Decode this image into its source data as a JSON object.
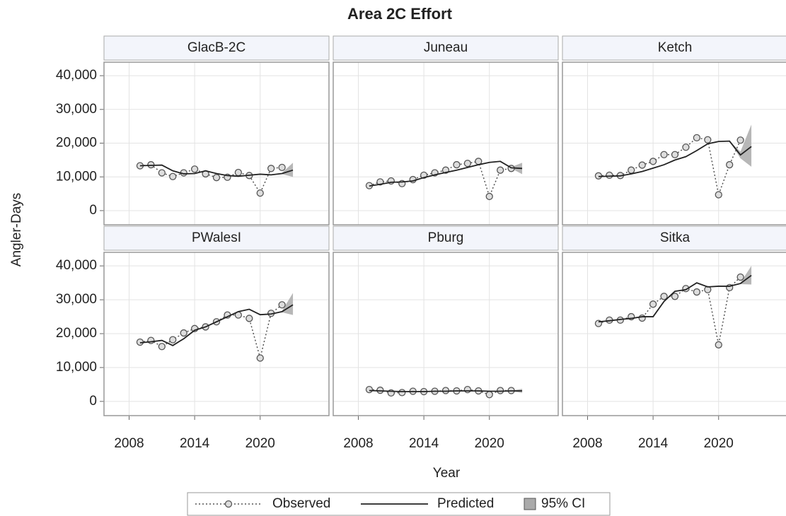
{
  "figure": {
    "title": "Area 2C Effort",
    "xlabel": "Year",
    "ylabel": "Angler-Days"
  },
  "chart_data": [
    {
      "type": "line",
      "title": "GlacB-2C",
      "x": [
        2009,
        2010,
        2011,
        2012,
        2013,
        2014,
        2015,
        2016,
        2017,
        2018,
        2019,
        2020,
        2021,
        2022,
        2023
      ],
      "series": [
        {
          "name": "Observed",
          "color": "#555555",
          "values": [
            13300,
            13600,
            11200,
            10100,
            11200,
            12300,
            10900,
            9800,
            9900,
            11300,
            10400,
            5200,
            12500,
            12800,
            null
          ]
        },
        {
          "name": "Predicted",
          "color": "#222222",
          "values": [
            13300,
            13400,
            13500,
            11800,
            10900,
            11000,
            11800,
            11000,
            10400,
            10200,
            10500,
            10800,
            10600,
            11000,
            12000
          ]
        },
        {
          "name": "95% CI",
          "color": "#aaaaaa",
          "lower": [
            null,
            null,
            null,
            null,
            null,
            null,
            null,
            null,
            null,
            null,
            null,
            null,
            null,
            10800,
            10000
          ],
          "upper": [
            null,
            null,
            null,
            null,
            null,
            null,
            null,
            null,
            null,
            null,
            null,
            null,
            null,
            11200,
            14200
          ]
        }
      ],
      "xlim": [
        2005.7,
        2026.3
      ],
      "xticks": [
        2008,
        2014,
        2020
      ],
      "ylim": [
        -4200,
        44000
      ],
      "yticks": [
        0,
        {
          "value": 10000,
          "label": "10,000"
        },
        {
          "value": 20000,
          "label": "20,000"
        },
        {
          "value": 30000,
          "label": "30,000"
        },
        {
          "value": 40000,
          "label": "40,000"
        }
      ],
      "grid": true
    },
    {
      "type": "line",
      "title": "Juneau",
      "x": [
        2009,
        2010,
        2011,
        2012,
        2013,
        2014,
        2015,
        2016,
        2017,
        2018,
        2019,
        2020,
        2021,
        2022,
        2023
      ],
      "series": [
        {
          "name": "Observed",
          "color": "#555555",
          "values": [
            7400,
            8500,
            8800,
            8000,
            9200,
            10500,
            11200,
            12000,
            13600,
            14000,
            14600,
            4200,
            12000,
            12500,
            null
          ]
        },
        {
          "name": "Predicted",
          "color": "#222222",
          "values": [
            7300,
            7800,
            8400,
            8500,
            8800,
            9800,
            10600,
            11300,
            12000,
            12800,
            13600,
            14300,
            14600,
            12700,
            12500
          ]
        },
        {
          "name": "95% CI",
          "color": "#aaaaaa",
          "lower": [
            null,
            null,
            null,
            null,
            null,
            null,
            null,
            null,
            null,
            null,
            null,
            null,
            null,
            12500,
            10800
          ],
          "upper": [
            null,
            null,
            null,
            null,
            null,
            null,
            null,
            null,
            null,
            null,
            null,
            null,
            null,
            12900,
            14200
          ]
        }
      ],
      "xlim": [
        2005.7,
        2026.3
      ],
      "xticks": [
        2008,
        2014,
        2020
      ],
      "ylim": [
        -4200,
        44000
      ],
      "yticks": [
        0,
        {
          "value": 10000,
          "label": "10,000"
        },
        {
          "value": 20000,
          "label": "20,000"
        },
        {
          "value": 30000,
          "label": "30,000"
        },
        {
          "value": 40000,
          "label": "40,000"
        }
      ],
      "grid": true
    },
    {
      "type": "line",
      "title": "Ketch",
      "x": [
        2009,
        2010,
        2011,
        2012,
        2013,
        2014,
        2015,
        2016,
        2017,
        2018,
        2019,
        2020,
        2021,
        2022,
        2023
      ],
      "series": [
        {
          "name": "Observed",
          "color": "#555555",
          "values": [
            10300,
            10500,
            10400,
            12000,
            13500,
            14600,
            16600,
            16600,
            18800,
            21600,
            21000,
            4700,
            13600,
            20900,
            null
          ]
        },
        {
          "name": "Predicted",
          "color": "#222222",
          "values": [
            10100,
            10200,
            10300,
            10900,
            11600,
            12600,
            13600,
            15000,
            16000,
            17800,
            19800,
            20500,
            20600,
            16500,
            19000
          ]
        },
        {
          "name": "95% CI",
          "color": "#aaaaaa",
          "lower": [
            null,
            null,
            null,
            null,
            null,
            null,
            null,
            null,
            null,
            null,
            null,
            null,
            20600,
            15500,
            13000
          ],
          "upper": [
            null,
            null,
            null,
            null,
            null,
            null,
            null,
            null,
            null,
            null,
            null,
            null,
            20600,
            17500,
            25500
          ]
        }
      ],
      "xlim": [
        2005.7,
        2026.3
      ],
      "xticks": [
        2008,
        2014,
        2020
      ],
      "ylim": [
        -4200,
        44000
      ],
      "yticks": [
        0,
        {
          "value": 10000,
          "label": "10,000"
        },
        {
          "value": 20000,
          "label": "20,000"
        },
        {
          "value": 30000,
          "label": "30,000"
        },
        {
          "value": 40000,
          "label": "40,000"
        }
      ],
      "grid": true
    },
    {
      "type": "line",
      "title": "PWalesI",
      "x": [
        2009,
        2010,
        2011,
        2012,
        2013,
        2014,
        2015,
        2016,
        2017,
        2018,
        2019,
        2020,
        2021,
        2022,
        2023
      ],
      "series": [
        {
          "name": "Observed",
          "color": "#555555",
          "values": [
            17500,
            18000,
            16200,
            18200,
            20200,
            21500,
            22000,
            23500,
            25500,
            25500,
            24500,
            12800,
            26000,
            28500,
            null
          ]
        },
        {
          "name": "Predicted",
          "color": "#222222",
          "values": [
            17300,
            17600,
            18000,
            16500,
            18500,
            21000,
            22000,
            23500,
            25000,
            26500,
            27200,
            25600,
            25800,
            26500,
            28500
          ]
        },
        {
          "name": "95% CI",
          "color": "#aaaaaa",
          "lower": [
            null,
            null,
            null,
            null,
            null,
            null,
            null,
            null,
            null,
            null,
            null,
            null,
            null,
            26300,
            25500
          ],
          "upper": [
            null,
            null,
            null,
            null,
            null,
            null,
            null,
            null,
            null,
            null,
            null,
            null,
            null,
            26700,
            32000
          ]
        }
      ],
      "xlim": [
        2005.7,
        2026.3
      ],
      "xticks": [
        2008,
        2014,
        2020
      ],
      "ylim": [
        -4200,
        44000
      ],
      "yticks": [
        0,
        {
          "value": 10000,
          "label": "10,000"
        },
        {
          "value": 20000,
          "label": "20,000"
        },
        {
          "value": 30000,
          "label": "30,000"
        },
        {
          "value": 40000,
          "label": "40,000"
        }
      ],
      "grid": true
    },
    {
      "type": "line",
      "title": "Pburg",
      "x": [
        2009,
        2010,
        2011,
        2012,
        2013,
        2014,
        2015,
        2016,
        2017,
        2018,
        2019,
        2020,
        2021,
        2022,
        2023
      ],
      "series": [
        {
          "name": "Observed",
          "color": "#555555",
          "values": [
            3500,
            3300,
            2500,
            2600,
            3000,
            2900,
            3000,
            3200,
            3100,
            3500,
            3100,
            2000,
            3200,
            3200,
            null
          ]
        },
        {
          "name": "Predicted",
          "color": "#222222",
          "values": [
            3200,
            3100,
            3000,
            2900,
            2900,
            2900,
            3000,
            3000,
            3100,
            3100,
            3100,
            3000,
            3000,
            3100,
            3100
          ]
        },
        {
          "name": "95% CI",
          "color": "#aaaaaa",
          "lower": [
            null,
            null,
            null,
            null,
            null,
            null,
            null,
            null,
            null,
            null,
            null,
            null,
            null,
            3000,
            2500
          ],
          "upper": [
            null,
            null,
            null,
            null,
            null,
            null,
            null,
            null,
            null,
            null,
            null,
            null,
            null,
            3200,
            3700
          ]
        }
      ],
      "xlim": [
        2005.7,
        2026.3
      ],
      "xticks": [
        2008,
        2014,
        2020
      ],
      "ylim": [
        -4200,
        44000
      ],
      "yticks": [
        0,
        {
          "value": 10000,
          "label": "10,000"
        },
        {
          "value": 20000,
          "label": "20,000"
        },
        {
          "value": 30000,
          "label": "30,000"
        },
        {
          "value": 40000,
          "label": "40,000"
        }
      ],
      "grid": true
    },
    {
      "type": "line",
      "title": "Sitka",
      "x": [
        2009,
        2010,
        2011,
        2012,
        2013,
        2014,
        2015,
        2016,
        2017,
        2018,
        2019,
        2020,
        2021,
        2022,
        2023
      ],
      "series": [
        {
          "name": "Observed",
          "color": "#555555",
          "values": [
            23000,
            24000,
            24000,
            25000,
            24600,
            28700,
            31000,
            31000,
            33300,
            32300,
            33000,
            16700,
            33600,
            36700,
            null
          ]
        },
        {
          "name": "Predicted",
          "color": "#222222",
          "values": [
            23500,
            23800,
            24200,
            24500,
            25000,
            25000,
            29500,
            32500,
            33000,
            35000,
            33800,
            34000,
            34000,
            34800,
            37200
          ]
        },
        {
          "name": "95% CI",
          "color": "#aaaaaa",
          "lower": [
            null,
            null,
            null,
            null,
            null,
            null,
            null,
            null,
            null,
            null,
            null,
            null,
            null,
            34600,
            34500
          ],
          "upper": [
            null,
            null,
            null,
            null,
            null,
            null,
            null,
            null,
            null,
            null,
            null,
            null,
            null,
            35000,
            40000
          ]
        }
      ],
      "xlim": [
        2005.7,
        2026.3
      ],
      "xticks": [
        2008,
        2014,
        2020
      ],
      "ylim": [
        -4200,
        44000
      ],
      "yticks": [
        0,
        {
          "value": 10000,
          "label": "10,000"
        },
        {
          "value": 20000,
          "label": "20,000"
        },
        {
          "value": 30000,
          "label": "30,000"
        },
        {
          "value": 40000,
          "label": "40,000"
        }
      ],
      "grid": true
    }
  ]
}
